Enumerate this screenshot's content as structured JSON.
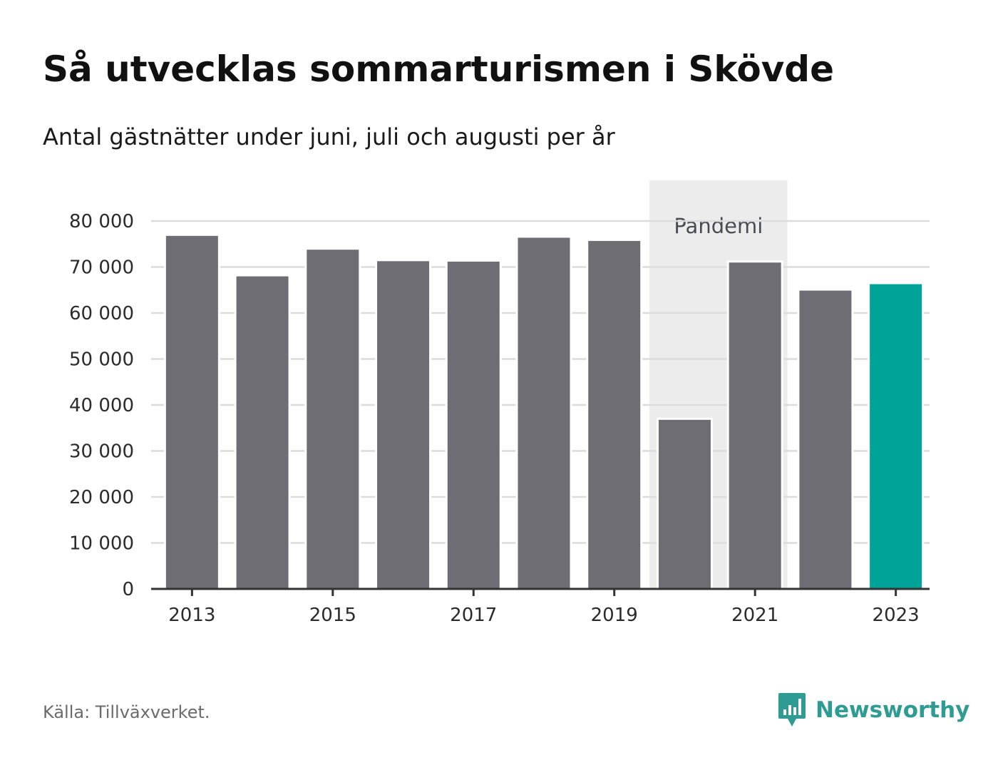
{
  "header": {
    "title": "Så utvecklas sommarturismen i Skövde",
    "subtitle": "Antal gästnätter under juni, juli och augusti per år"
  },
  "footer": {
    "source": "Källa: Tillväxverket.",
    "brand": "Newsworthy",
    "brand_icon": "bar-chart-speech-bubble-icon"
  },
  "colors": {
    "bar": "#6e6d73",
    "highlight": "#00a398",
    "band": "#ececec",
    "grid": "#dcdcdc",
    "axis": "#333333",
    "brand": "#2e9c92"
  },
  "chart_data": {
    "type": "bar",
    "categories": [
      "2013",
      "2014",
      "2015",
      "2016",
      "2017",
      "2018",
      "2019",
      "2020",
      "2021",
      "2022",
      "2023"
    ],
    "values": [
      77000,
      68200,
      74000,
      71500,
      71400,
      76600,
      75900,
      37000,
      71200,
      65100,
      66500
    ],
    "highlight_category": "2023",
    "x_tick_labels": [
      "2013",
      "2015",
      "2017",
      "2019",
      "2021",
      "2023"
    ],
    "y_ticks": [
      0,
      10000,
      20000,
      30000,
      40000,
      50000,
      60000,
      70000,
      80000
    ],
    "y_tick_labels": [
      "0",
      "10 000",
      "20 000",
      "30 000",
      "40 000",
      "50 000",
      "60 000",
      "70 000",
      "80 000"
    ],
    "ylim": [
      0,
      80000
    ],
    "xlabel": "",
    "ylabel": "",
    "grid": true,
    "annotation": {
      "label": "Pandemi",
      "from": "2020",
      "to": "2021"
    }
  }
}
